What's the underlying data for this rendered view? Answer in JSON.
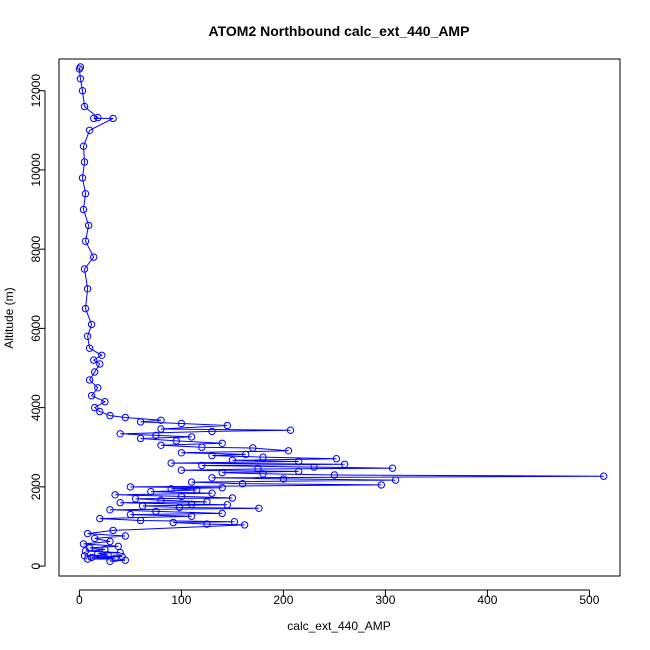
{
  "chart_data": {
    "type": "scatter",
    "title": "ATOM2 Northbound calc_ext_440_AMP",
    "xlabel": "calc_ext_440_AMP",
    "ylabel": "Altitude (m)",
    "xlim": [
      -20,
      530
    ],
    "ylim": [
      -250,
      12800
    ],
    "xticks": [
      0,
      100,
      200,
      300,
      400,
      500
    ],
    "yticks": [
      0,
      2000,
      4000,
      6000,
      8000,
      10000,
      12000
    ],
    "grid": false,
    "marker": "open-circle",
    "connect_points": true,
    "series": [
      {
        "color": "#0000ff",
        "points": [
          [
            30,
            120
          ],
          [
            45,
            150
          ],
          [
            8,
            180
          ],
          [
            35,
            200
          ],
          [
            12,
            220
          ],
          [
            42,
            240
          ],
          [
            5,
            260
          ],
          [
            28,
            280
          ],
          [
            18,
            320
          ],
          [
            40,
            340
          ],
          [
            6,
            380
          ],
          [
            25,
            420
          ],
          [
            10,
            460
          ],
          [
            38,
            500
          ],
          [
            4,
            560
          ],
          [
            30,
            620
          ],
          [
            15,
            700
          ],
          [
            45,
            760
          ],
          [
            8,
            820
          ],
          [
            33,
            900
          ],
          [
            162,
            1040
          ],
          [
            125,
            1060
          ],
          [
            152,
            1120
          ],
          [
            92,
            1100
          ],
          [
            60,
            1150
          ],
          [
            20,
            1200
          ],
          [
            110,
            1260
          ],
          [
            50,
            1300
          ],
          [
            140,
            1330
          ],
          [
            75,
            1380
          ],
          [
            30,
            1420
          ],
          [
            176,
            1460
          ],
          [
            98,
            1480
          ],
          [
            62,
            1520
          ],
          [
            145,
            1550
          ],
          [
            110,
            1560
          ],
          [
            40,
            1600
          ],
          [
            125,
            1620
          ],
          [
            80,
            1660
          ],
          [
            55,
            1700
          ],
          [
            150,
            1720
          ],
          [
            100,
            1760
          ],
          [
            35,
            1800
          ],
          [
            130,
            1840
          ],
          [
            70,
            1880
          ],
          [
            115,
            1920
          ],
          [
            90,
            1950
          ],
          [
            140,
            1980
          ],
          [
            50,
            2000
          ],
          [
            296,
            2050
          ],
          [
            160,
            2080
          ],
          [
            110,
            2120
          ],
          [
            310,
            2170
          ],
          [
            200,
            2200
          ],
          [
            130,
            2230
          ],
          [
            514,
            2270
          ],
          [
            250,
            2300
          ],
          [
            180,
            2330
          ],
          [
            140,
            2360
          ],
          [
            215,
            2390
          ],
          [
            100,
            2420
          ],
          [
            307,
            2470
          ],
          [
            175,
            2450
          ],
          [
            230,
            2500
          ],
          [
            120,
            2540
          ],
          [
            260,
            2570
          ],
          [
            90,
            2600
          ],
          [
            215,
            2640
          ],
          [
            150,
            2670
          ],
          [
            252,
            2710
          ],
          [
            180,
            2750
          ],
          [
            130,
            2790
          ],
          [
            163,
            2820
          ],
          [
            100,
            2860
          ],
          [
            205,
            2910
          ],
          [
            170,
            2980
          ],
          [
            120,
            3000
          ],
          [
            80,
            3050
          ],
          [
            140,
            3100
          ],
          [
            95,
            3160
          ],
          [
            60,
            3220
          ],
          [
            110,
            3260
          ],
          [
            75,
            3300
          ],
          [
            40,
            3340
          ],
          [
            207,
            3430
          ],
          [
            130,
            3400
          ],
          [
            80,
            3460
          ],
          [
            145,
            3550
          ],
          [
            100,
            3600
          ],
          [
            60,
            3640
          ],
          [
            80,
            3680
          ],
          [
            45,
            3750
          ],
          [
            30,
            3800
          ],
          [
            20,
            3900
          ],
          [
            15,
            4000
          ],
          [
            25,
            4150
          ],
          [
            12,
            4300
          ],
          [
            18,
            4500
          ],
          [
            10,
            4700
          ],
          [
            15,
            4900
          ],
          [
            20,
            5100
          ],
          [
            22,
            5320
          ],
          [
            14,
            5200
          ],
          [
            10,
            5500
          ],
          [
            8,
            5800
          ],
          [
            12,
            6100
          ],
          [
            6,
            6500
          ],
          [
            8,
            7000
          ],
          [
            5,
            7500
          ],
          [
            14,
            7800
          ],
          [
            6,
            8200
          ],
          [
            9,
            8600
          ],
          [
            4,
            9000
          ],
          [
            6,
            9400
          ],
          [
            3,
            9800
          ],
          [
            5,
            10200
          ],
          [
            4,
            10600
          ],
          [
            10,
            11000
          ],
          [
            33,
            11300
          ],
          [
            18,
            11320
          ],
          [
            14,
            11300
          ],
          [
            5,
            11600
          ],
          [
            3,
            12000
          ],
          [
            1,
            12300
          ],
          [
            0,
            12550
          ],
          [
            1,
            12600
          ]
        ]
      }
    ]
  }
}
